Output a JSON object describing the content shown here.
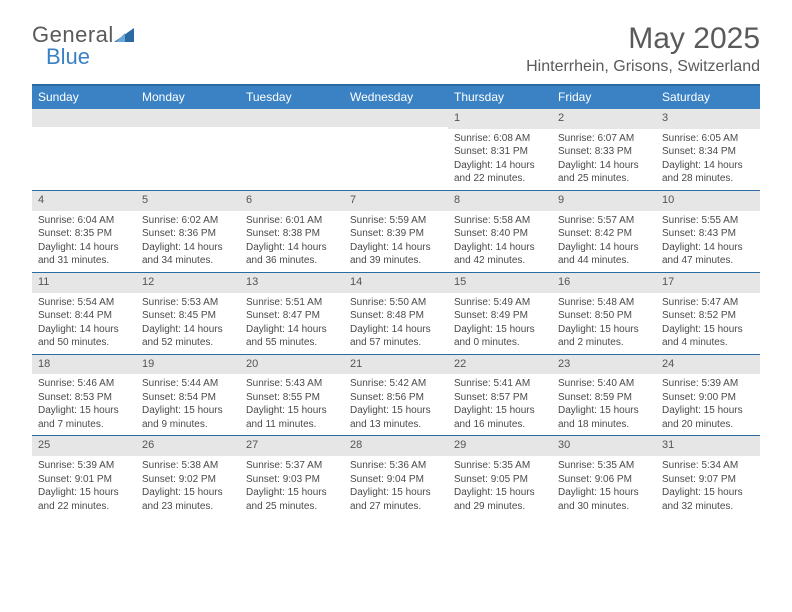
{
  "brand": {
    "part1": "General",
    "part2": "Blue"
  },
  "header": {
    "month_title": "May 2025",
    "location": "Hinterrhein, Grisons, Switzerland"
  },
  "colors": {
    "header_bar": "#3b82c4",
    "rule": "#2b6aa3",
    "daynum_bg": "#e6e6e6",
    "text": "#4a4a4a",
    "brand_blue": "#3b82c4"
  },
  "days_of_week": [
    "Sunday",
    "Monday",
    "Tuesday",
    "Wednesday",
    "Thursday",
    "Friday",
    "Saturday"
  ],
  "weeks": [
    [
      {
        "n": "",
        "sr": "",
        "ss": "",
        "dl": ""
      },
      {
        "n": "",
        "sr": "",
        "ss": "",
        "dl": ""
      },
      {
        "n": "",
        "sr": "",
        "ss": "",
        "dl": ""
      },
      {
        "n": "",
        "sr": "",
        "ss": "",
        "dl": ""
      },
      {
        "n": "1",
        "sr": "Sunrise: 6:08 AM",
        "ss": "Sunset: 8:31 PM",
        "dl": "Daylight: 14 hours and 22 minutes."
      },
      {
        "n": "2",
        "sr": "Sunrise: 6:07 AM",
        "ss": "Sunset: 8:33 PM",
        "dl": "Daylight: 14 hours and 25 minutes."
      },
      {
        "n": "3",
        "sr": "Sunrise: 6:05 AM",
        "ss": "Sunset: 8:34 PM",
        "dl": "Daylight: 14 hours and 28 minutes."
      }
    ],
    [
      {
        "n": "4",
        "sr": "Sunrise: 6:04 AM",
        "ss": "Sunset: 8:35 PM",
        "dl": "Daylight: 14 hours and 31 minutes."
      },
      {
        "n": "5",
        "sr": "Sunrise: 6:02 AM",
        "ss": "Sunset: 8:36 PM",
        "dl": "Daylight: 14 hours and 34 minutes."
      },
      {
        "n": "6",
        "sr": "Sunrise: 6:01 AM",
        "ss": "Sunset: 8:38 PM",
        "dl": "Daylight: 14 hours and 36 minutes."
      },
      {
        "n": "7",
        "sr": "Sunrise: 5:59 AM",
        "ss": "Sunset: 8:39 PM",
        "dl": "Daylight: 14 hours and 39 minutes."
      },
      {
        "n": "8",
        "sr": "Sunrise: 5:58 AM",
        "ss": "Sunset: 8:40 PM",
        "dl": "Daylight: 14 hours and 42 minutes."
      },
      {
        "n": "9",
        "sr": "Sunrise: 5:57 AM",
        "ss": "Sunset: 8:42 PM",
        "dl": "Daylight: 14 hours and 44 minutes."
      },
      {
        "n": "10",
        "sr": "Sunrise: 5:55 AM",
        "ss": "Sunset: 8:43 PM",
        "dl": "Daylight: 14 hours and 47 minutes."
      }
    ],
    [
      {
        "n": "11",
        "sr": "Sunrise: 5:54 AM",
        "ss": "Sunset: 8:44 PM",
        "dl": "Daylight: 14 hours and 50 minutes."
      },
      {
        "n": "12",
        "sr": "Sunrise: 5:53 AM",
        "ss": "Sunset: 8:45 PM",
        "dl": "Daylight: 14 hours and 52 minutes."
      },
      {
        "n": "13",
        "sr": "Sunrise: 5:51 AM",
        "ss": "Sunset: 8:47 PM",
        "dl": "Daylight: 14 hours and 55 minutes."
      },
      {
        "n": "14",
        "sr": "Sunrise: 5:50 AM",
        "ss": "Sunset: 8:48 PM",
        "dl": "Daylight: 14 hours and 57 minutes."
      },
      {
        "n": "15",
        "sr": "Sunrise: 5:49 AM",
        "ss": "Sunset: 8:49 PM",
        "dl": "Daylight: 15 hours and 0 minutes."
      },
      {
        "n": "16",
        "sr": "Sunrise: 5:48 AM",
        "ss": "Sunset: 8:50 PM",
        "dl": "Daylight: 15 hours and 2 minutes."
      },
      {
        "n": "17",
        "sr": "Sunrise: 5:47 AM",
        "ss": "Sunset: 8:52 PM",
        "dl": "Daylight: 15 hours and 4 minutes."
      }
    ],
    [
      {
        "n": "18",
        "sr": "Sunrise: 5:46 AM",
        "ss": "Sunset: 8:53 PM",
        "dl": "Daylight: 15 hours and 7 minutes."
      },
      {
        "n": "19",
        "sr": "Sunrise: 5:44 AM",
        "ss": "Sunset: 8:54 PM",
        "dl": "Daylight: 15 hours and 9 minutes."
      },
      {
        "n": "20",
        "sr": "Sunrise: 5:43 AM",
        "ss": "Sunset: 8:55 PM",
        "dl": "Daylight: 15 hours and 11 minutes."
      },
      {
        "n": "21",
        "sr": "Sunrise: 5:42 AM",
        "ss": "Sunset: 8:56 PM",
        "dl": "Daylight: 15 hours and 13 minutes."
      },
      {
        "n": "22",
        "sr": "Sunrise: 5:41 AM",
        "ss": "Sunset: 8:57 PM",
        "dl": "Daylight: 15 hours and 16 minutes."
      },
      {
        "n": "23",
        "sr": "Sunrise: 5:40 AM",
        "ss": "Sunset: 8:59 PM",
        "dl": "Daylight: 15 hours and 18 minutes."
      },
      {
        "n": "24",
        "sr": "Sunrise: 5:39 AM",
        "ss": "Sunset: 9:00 PM",
        "dl": "Daylight: 15 hours and 20 minutes."
      }
    ],
    [
      {
        "n": "25",
        "sr": "Sunrise: 5:39 AM",
        "ss": "Sunset: 9:01 PM",
        "dl": "Daylight: 15 hours and 22 minutes."
      },
      {
        "n": "26",
        "sr": "Sunrise: 5:38 AM",
        "ss": "Sunset: 9:02 PM",
        "dl": "Daylight: 15 hours and 23 minutes."
      },
      {
        "n": "27",
        "sr": "Sunrise: 5:37 AM",
        "ss": "Sunset: 9:03 PM",
        "dl": "Daylight: 15 hours and 25 minutes."
      },
      {
        "n": "28",
        "sr": "Sunrise: 5:36 AM",
        "ss": "Sunset: 9:04 PM",
        "dl": "Daylight: 15 hours and 27 minutes."
      },
      {
        "n": "29",
        "sr": "Sunrise: 5:35 AM",
        "ss": "Sunset: 9:05 PM",
        "dl": "Daylight: 15 hours and 29 minutes."
      },
      {
        "n": "30",
        "sr": "Sunrise: 5:35 AM",
        "ss": "Sunset: 9:06 PM",
        "dl": "Daylight: 15 hours and 30 minutes."
      },
      {
        "n": "31",
        "sr": "Sunrise: 5:34 AM",
        "ss": "Sunset: 9:07 PM",
        "dl": "Daylight: 15 hours and 32 minutes."
      }
    ]
  ]
}
